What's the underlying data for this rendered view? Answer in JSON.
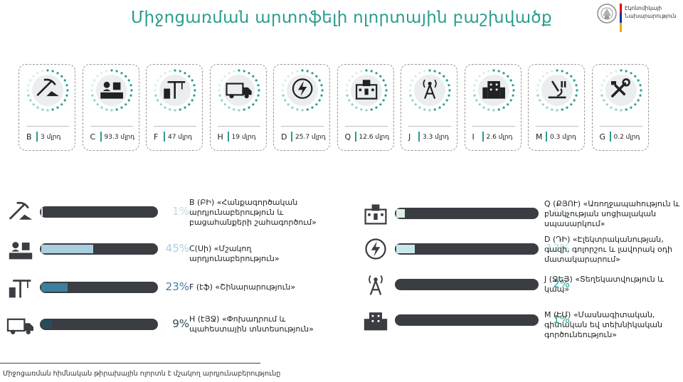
{
  "title": "Միջոցառման արտոֆելի ոլորտային բաշխվածք",
  "logo": {
    "line1": "Էկոնոմիկայի",
    "line2": "Նախարարություն"
  },
  "unit": "մլրդ",
  "chart_data": {
    "type": "bar",
    "cards": [
      {
        "code": "B",
        "value": 3,
        "icon": "mining-icon"
      },
      {
        "code": "C",
        "value": 93.3,
        "icon": "manufacturing-icon"
      },
      {
        "code": "F",
        "value": 47,
        "icon": "construction-icon"
      },
      {
        "code": "H",
        "value": 19,
        "icon": "truck-icon"
      },
      {
        "code": "D",
        "value": 25.7,
        "icon": "lightning-icon"
      },
      {
        "code": "Q",
        "value": 12.6,
        "icon": "hospital-icon"
      },
      {
        "code": "J",
        "value": 3.3,
        "icon": "antenna-icon"
      },
      {
        "code": "I",
        "value": 2.6,
        "icon": "hotel-icon"
      },
      {
        "code": "M",
        "value": 0.3,
        "icon": "microscope-icon"
      },
      {
        "code": "G",
        "value": 0.2,
        "icon": "tools-icon"
      }
    ],
    "bars_left": [
      {
        "label": "B (ԲԻ) «Հանքագործական արդյունաբերություն և բացահանքերի շահագործում»",
        "percent": 1,
        "color": "#e3eaee",
        "icon": "mining-icon"
      },
      {
        "label": "C(Սի) «Մշակող արդյունաբերություն»",
        "percent": 45,
        "color": "#a9cfe0",
        "icon": "manufacturing-icon"
      },
      {
        "label": "F (էֆ) «Շինարարություն»",
        "percent": 23,
        "color": "#3d7f9c",
        "icon": "construction-icon"
      },
      {
        "label": "H (էՅՋ) «Փոխադրում և պահեստային տնտեսություն»",
        "percent": 9,
        "color": "#2b4a5b",
        "icon": "truck-icon"
      }
    ],
    "bars_right": [
      {
        "label": "Q (ՔՅՈՒ) «Առողջապահություն և բնակչության սոցիալական սպասարկում»",
        "percent": 6,
        "color": "#dfeee6",
        "icon": "hospital-icon"
      },
      {
        "label": "D (ԴԻ) «Էլեկտրականության, գազի, գոլորշու և լավորակ օդի մատակարարում»",
        "percent": 13,
        "color": "#c8e7ea",
        "icon": "lightning-icon"
      },
      {
        "label": "J (ՋԵՅ) «Տեղեկատվություն և կապ»",
        "percent": 2,
        "color": "#3a3d42",
        "icon": "antenna-icon"
      },
      {
        "label": "M (ԷՄ) «Մասնագիտական, գիտական եվ տեխնիկական գործունեություն»",
        "percent": 1,
        "color": "#3a3d42",
        "icon": "hotel-icon"
      }
    ],
    "pct_colors": [
      "#c9d6dd",
      "#a9cfe0",
      "#3d7f9c",
      "#2b4a5b",
      "#cfe6dc",
      "#a8dce0",
      "#2a9d8f",
      "#2a9d8f"
    ]
  },
  "footer": "Միջոցառման հիմնական թիրախային ոլորտն է մշակող արդյունաբերությունը"
}
